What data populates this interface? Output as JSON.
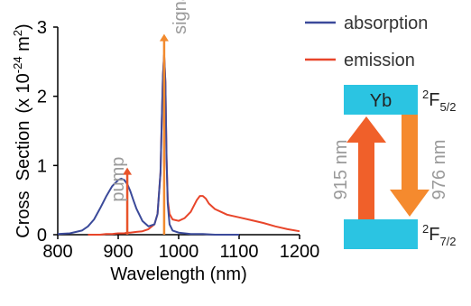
{
  "chart_data": {
    "type": "line",
    "xlabel": "Wavelength (nm)",
    "ylabel_main": "Cross  Section",
    "ylabel_unit_pre": "(x 10",
    "ylabel_unit_exp": "-24",
    "ylabel_unit_mid": " m",
    "ylabel_unit_exp2": "2",
    "ylabel_unit_post": ")",
    "xlim": [
      800,
      1200
    ],
    "ylim": [
      0,
      3
    ],
    "xticks": [
      "800",
      "900",
      "1000",
      "1100",
      "1200"
    ],
    "yticks": [
      "0",
      "1",
      "2",
      "3"
    ],
    "grid": false,
    "legend_position": "top-right",
    "series": [
      {
        "name": "absorption",
        "color": "#3b4a9a",
        "x": [
          800,
          820,
          840,
          850,
          860,
          870,
          880,
          890,
          900,
          905,
          910,
          915,
          920,
          925,
          930,
          940,
          950,
          960,
          965,
          970,
          972,
          974,
          976,
          978,
          980,
          982,
          985,
          990,
          1000,
          1010,
          1020,
          1040,
          1060,
          1080,
          1100
        ],
        "y": [
          0.01,
          0.02,
          0.06,
          0.12,
          0.22,
          0.38,
          0.55,
          0.7,
          0.79,
          0.81,
          0.79,
          0.73,
          0.63,
          0.5,
          0.38,
          0.2,
          0.12,
          0.15,
          0.3,
          0.9,
          1.6,
          2.3,
          2.6,
          2.2,
          1.1,
          0.45,
          0.15,
          0.06,
          0.03,
          0.02,
          0.01,
          0.01,
          0.0,
          0.0,
          0.0
        ]
      },
      {
        "name": "emission",
        "color": "#e8452a",
        "x": [
          850,
          870,
          880,
          890,
          900,
          910,
          915,
          920,
          930,
          940,
          950,
          960,
          965,
          970,
          972,
          974,
          976,
          978,
          980,
          982,
          985,
          990,
          1000,
          1010,
          1020,
          1030,
          1035,
          1040,
          1045,
          1050,
          1060,
          1070,
          1080,
          1100,
          1120,
          1140,
          1160,
          1180,
          1200
        ],
        "y": [
          0.0,
          0.0,
          0.01,
          0.01,
          0.02,
          0.02,
          0.03,
          0.03,
          0.04,
          0.05,
          0.08,
          0.15,
          0.3,
          0.9,
          1.6,
          2.3,
          2.6,
          2.2,
          1.1,
          0.5,
          0.3,
          0.22,
          0.2,
          0.24,
          0.33,
          0.5,
          0.56,
          0.56,
          0.52,
          0.45,
          0.37,
          0.33,
          0.29,
          0.25,
          0.21,
          0.17,
          0.12,
          0.08,
          0.05
        ]
      }
    ],
    "markers": [
      {
        "label": "pump",
        "x": 915,
        "y": 0.97,
        "color": "#e8542a"
      },
      {
        "label": "signal",
        "x": 976,
        "y": 2.9,
        "color": "#f28a2e"
      }
    ]
  },
  "energy_diagram": {
    "ion_label": "Yb",
    "upper_level": {
      "base": "2",
      "letter": "F",
      "sub": "5/2"
    },
    "lower_level": {
      "base": "2",
      "letter": "F",
      "sub": "7/2"
    },
    "pump_wavelength": "915 nm",
    "signal_wavelength": "976 nm",
    "level_color": "#2bc4e2",
    "pump_arrow_color": "#f0602a",
    "signal_arrow_color": "#f58a2e"
  }
}
